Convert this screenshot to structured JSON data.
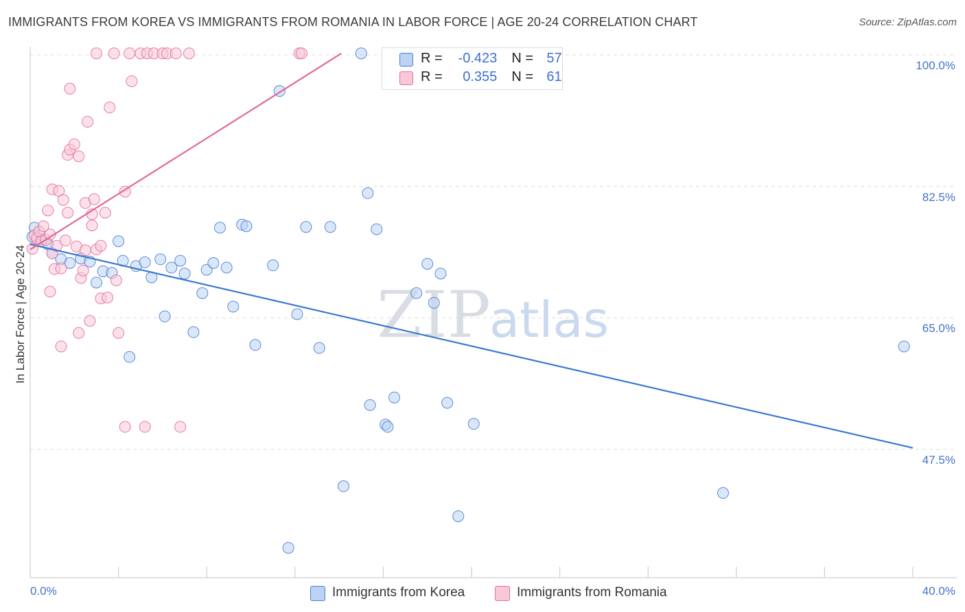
{
  "title": "IMMIGRANTS FROM KOREA VS IMMIGRANTS FROM ROMANIA IN LABOR FORCE | AGE 20-24 CORRELATION CHART",
  "source": "Source: ZipAtlas.com",
  "watermark": {
    "zip": "ZIP",
    "atlas": "atlas"
  },
  "legend_top": {
    "korea": {
      "r_label": "R =",
      "r_value": "-0.423",
      "n_label": "N =",
      "n_value": "57"
    },
    "romania": {
      "r_label": "R =",
      "r_value": "0.355",
      "n_label": "N =",
      "n_value": "61"
    }
  },
  "legend_bottom": {
    "korea": "Immigrants from Korea",
    "romania": "Immigrants from Romania"
  },
  "chart_data": {
    "type": "scatter",
    "title": "IMMIGRANTS FROM KOREA VS IMMIGRANTS FROM ROMANIA IN LABOR FORCE | AGE 20-24 CORRELATION CHART",
    "xlabel": "",
    "ylabel": "In Labor Force | Age 20-24",
    "xlim": [
      0,
      40
    ],
    "ylim": [
      30,
      102
    ],
    "x_tick_labels": [
      "0.0%",
      "40.0%"
    ],
    "y_ticks": [
      47.5,
      65.0,
      82.5,
      100.0
    ],
    "y_tick_labels": [
      "47.5%",
      "65.0%",
      "82.5%",
      "100.0%"
    ],
    "colors": {
      "korea": "#4a7fd4",
      "korea_fill": "#bcd3f3",
      "romania": "#e56f9a",
      "romania_fill": "#f8c8d8",
      "tick": "#4472c4"
    },
    "series": [
      {
        "name": "Immigrants from Korea",
        "trend": {
          "x": [
            0.0,
            40.0
          ],
          "y": [
            74.8,
            47.7
          ]
        },
        "points": [
          [
            0.2,
            77.0
          ],
          [
            0.5,
            75.5
          ],
          [
            0.8,
            74.8
          ],
          [
            1.0,
            73.6
          ],
          [
            1.4,
            72.8
          ],
          [
            1.8,
            72.3
          ],
          [
            2.3,
            72.9
          ],
          [
            2.7,
            72.5
          ],
          [
            3.0,
            69.7
          ],
          [
            3.3,
            71.2
          ],
          [
            3.7,
            71.0
          ],
          [
            4.0,
            75.2
          ],
          [
            4.2,
            72.6
          ],
          [
            4.5,
            59.8
          ],
          [
            4.8,
            71.9
          ],
          [
            5.2,
            72.4
          ],
          [
            5.5,
            70.4
          ],
          [
            5.9,
            72.8
          ],
          [
            6.1,
            65.2
          ],
          [
            6.4,
            71.7
          ],
          [
            6.8,
            72.6
          ],
          [
            7.0,
            70.9
          ],
          [
            7.4,
            63.1
          ],
          [
            7.8,
            68.3
          ],
          [
            8.0,
            71.4
          ],
          [
            8.3,
            72.3
          ],
          [
            8.6,
            77.0
          ],
          [
            8.9,
            71.7
          ],
          [
            9.2,
            66.5
          ],
          [
            9.6,
            77.4
          ],
          [
            9.8,
            77.2
          ],
          [
            10.2,
            61.4
          ],
          [
            11.0,
            72.0
          ],
          [
            11.3,
            95.2
          ],
          [
            11.7,
            34.4
          ],
          [
            12.1,
            65.5
          ],
          [
            12.5,
            77.1
          ],
          [
            13.1,
            61.0
          ],
          [
            13.6,
            77.1
          ],
          [
            14.2,
            42.6
          ],
          [
            15.0,
            100.2
          ],
          [
            15.3,
            81.6
          ],
          [
            15.4,
            53.4
          ],
          [
            15.7,
            76.8
          ],
          [
            16.1,
            50.8
          ],
          [
            16.2,
            50.5
          ],
          [
            16.5,
            54.4
          ],
          [
            17.5,
            68.3
          ],
          [
            18.0,
            72.2
          ],
          [
            18.3,
            67.0
          ],
          [
            18.6,
            70.9
          ],
          [
            18.9,
            53.7
          ],
          [
            19.4,
            38.6
          ],
          [
            20.1,
            50.9
          ],
          [
            31.4,
            41.7
          ],
          [
            39.6,
            61.2
          ],
          [
            0.1,
            75.8
          ]
        ]
      },
      {
        "name": "Immigrants from Romania",
        "trend": {
          "x": [
            0.0,
            14.1
          ],
          "y": [
            74.1,
            100.2
          ]
        },
        "points": [
          [
            0.1,
            74.2
          ],
          [
            0.2,
            76.0
          ],
          [
            0.3,
            75.6
          ],
          [
            0.4,
            76.5
          ],
          [
            0.5,
            75.2
          ],
          [
            0.6,
            77.2
          ],
          [
            0.7,
            75.4
          ],
          [
            0.8,
            79.3
          ],
          [
            0.9,
            76.1
          ],
          [
            0.9,
            68.5
          ],
          [
            1.0,
            73.6
          ],
          [
            1.0,
            82.1
          ],
          [
            1.1,
            71.5
          ],
          [
            1.2,
            74.6
          ],
          [
            1.3,
            81.9
          ],
          [
            1.4,
            71.6
          ],
          [
            1.4,
            61.2
          ],
          [
            1.5,
            80.7
          ],
          [
            1.6,
            75.3
          ],
          [
            1.7,
            79.0
          ],
          [
            1.7,
            86.7
          ],
          [
            1.8,
            87.4
          ],
          [
            1.8,
            95.5
          ],
          [
            2.0,
            88.1
          ],
          [
            2.1,
            74.5
          ],
          [
            2.2,
            86.5
          ],
          [
            2.2,
            63.0
          ],
          [
            2.3,
            70.3
          ],
          [
            2.4,
            71.3
          ],
          [
            2.5,
            80.3
          ],
          [
            2.5,
            74.0
          ],
          [
            2.6,
            91.1
          ],
          [
            2.7,
            64.6
          ],
          [
            2.8,
            77.3
          ],
          [
            2.8,
            78.8
          ],
          [
            2.9,
            80.8
          ],
          [
            3.0,
            74.1
          ],
          [
            3.0,
            100.2
          ],
          [
            3.2,
            74.6
          ],
          [
            3.2,
            67.6
          ],
          [
            3.4,
            79.0
          ],
          [
            3.5,
            67.7
          ],
          [
            3.6,
            93.0
          ],
          [
            3.8,
            100.2
          ],
          [
            3.9,
            70.0
          ],
          [
            4.0,
            63.0
          ],
          [
            4.3,
            50.5
          ],
          [
            4.3,
            81.8
          ],
          [
            4.5,
            100.2
          ],
          [
            4.6,
            96.5
          ],
          [
            5.0,
            100.2
          ],
          [
            5.2,
            50.5
          ],
          [
            5.3,
            100.2
          ],
          [
            5.6,
            100.2
          ],
          [
            6.0,
            100.2
          ],
          [
            6.2,
            100.2
          ],
          [
            6.6,
            100.2
          ],
          [
            6.8,
            50.5
          ],
          [
            7.2,
            100.2
          ],
          [
            12.2,
            100.2
          ],
          [
            12.3,
            100.2
          ]
        ]
      }
    ]
  }
}
